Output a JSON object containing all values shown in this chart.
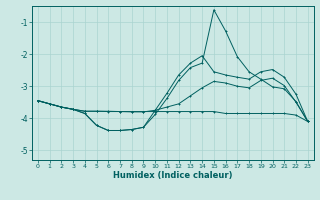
{
  "xlabel": "Humidex (Indice chaleur)",
  "bg_color": "#cce8e4",
  "grid_color": "#aad4d0",
  "line_color": "#006060",
  "xlim": [
    -0.5,
    23.5
  ],
  "ylim": [
    -5.3,
    -0.5
  ],
  "yticks": [
    -5,
    -4,
    -3,
    -2,
    -1
  ],
  "xticks": [
    0,
    1,
    2,
    3,
    4,
    5,
    6,
    7,
    8,
    9,
    10,
    11,
    12,
    13,
    14,
    15,
    16,
    17,
    18,
    19,
    20,
    21,
    22,
    23
  ],
  "line1_y": [
    -3.45,
    -3.55,
    -3.65,
    -3.72,
    -3.78,
    -3.78,
    -3.78,
    -3.79,
    -3.79,
    -3.79,
    -3.79,
    -3.79,
    -3.79,
    -3.79,
    -3.79,
    -3.79,
    -3.85,
    -3.85,
    -3.85,
    -3.85,
    -3.85,
    -3.85,
    -3.9,
    -4.1
  ],
  "line2_y": [
    -3.45,
    -3.55,
    -3.65,
    -3.72,
    -3.78,
    -3.78,
    -3.79,
    -3.79,
    -3.8,
    -3.8,
    -3.75,
    -3.65,
    -3.55,
    -3.3,
    -3.05,
    -2.85,
    -2.9,
    -3.0,
    -3.05,
    -2.82,
    -2.75,
    -2.98,
    -3.5,
    -4.1
  ],
  "line3_y": [
    -3.45,
    -3.55,
    -3.65,
    -3.72,
    -3.85,
    -4.22,
    -4.38,
    -4.38,
    -4.35,
    -4.28,
    -3.88,
    -3.38,
    -2.82,
    -2.42,
    -2.28,
    -0.62,
    -1.28,
    -2.08,
    -2.55,
    -2.78,
    -3.02,
    -3.08,
    -3.48,
    -4.1
  ],
  "line4_y": [
    -3.45,
    -3.55,
    -3.65,
    -3.72,
    -3.85,
    -4.22,
    -4.38,
    -4.38,
    -4.35,
    -4.28,
    -3.75,
    -3.22,
    -2.65,
    -2.28,
    -2.05,
    -2.55,
    -2.65,
    -2.72,
    -2.78,
    -2.55,
    -2.48,
    -2.72,
    -3.25,
    -4.1
  ]
}
